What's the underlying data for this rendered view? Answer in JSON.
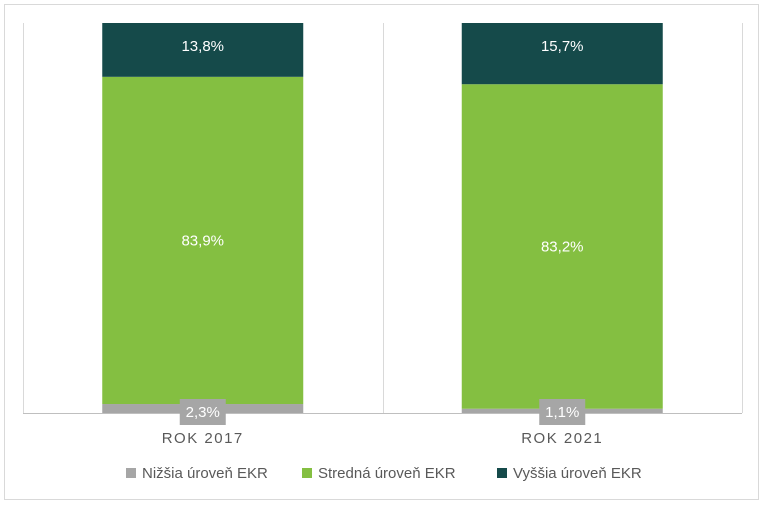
{
  "chart_data": {
    "type": "bar",
    "stacked": true,
    "percent_stacked": true,
    "categories": [
      "ROK 2017",
      "ROK 2021"
    ],
    "series": [
      {
        "name": "Nižšia úroveň EKR",
        "values": [
          2.3,
          1.1
        ],
        "labels": [
          "2,3%",
          "1,1%"
        ],
        "color": "#a6a6a6"
      },
      {
        "name": "Stredná úroveň EKR",
        "values": [
          83.9,
          83.2
        ],
        "labels": [
          "83,9%",
          "83,2%"
        ],
        "color": "#84bf41"
      },
      {
        "name": "Vyššia úroveň EKR",
        "values": [
          13.8,
          15.7
        ],
        "labels": [
          "13,8%",
          "15,7%"
        ],
        "color": "#154a4a"
      }
    ],
    "ylim": [
      0,
      100
    ],
    "grid": false,
    "legend_position": "bottom"
  }
}
